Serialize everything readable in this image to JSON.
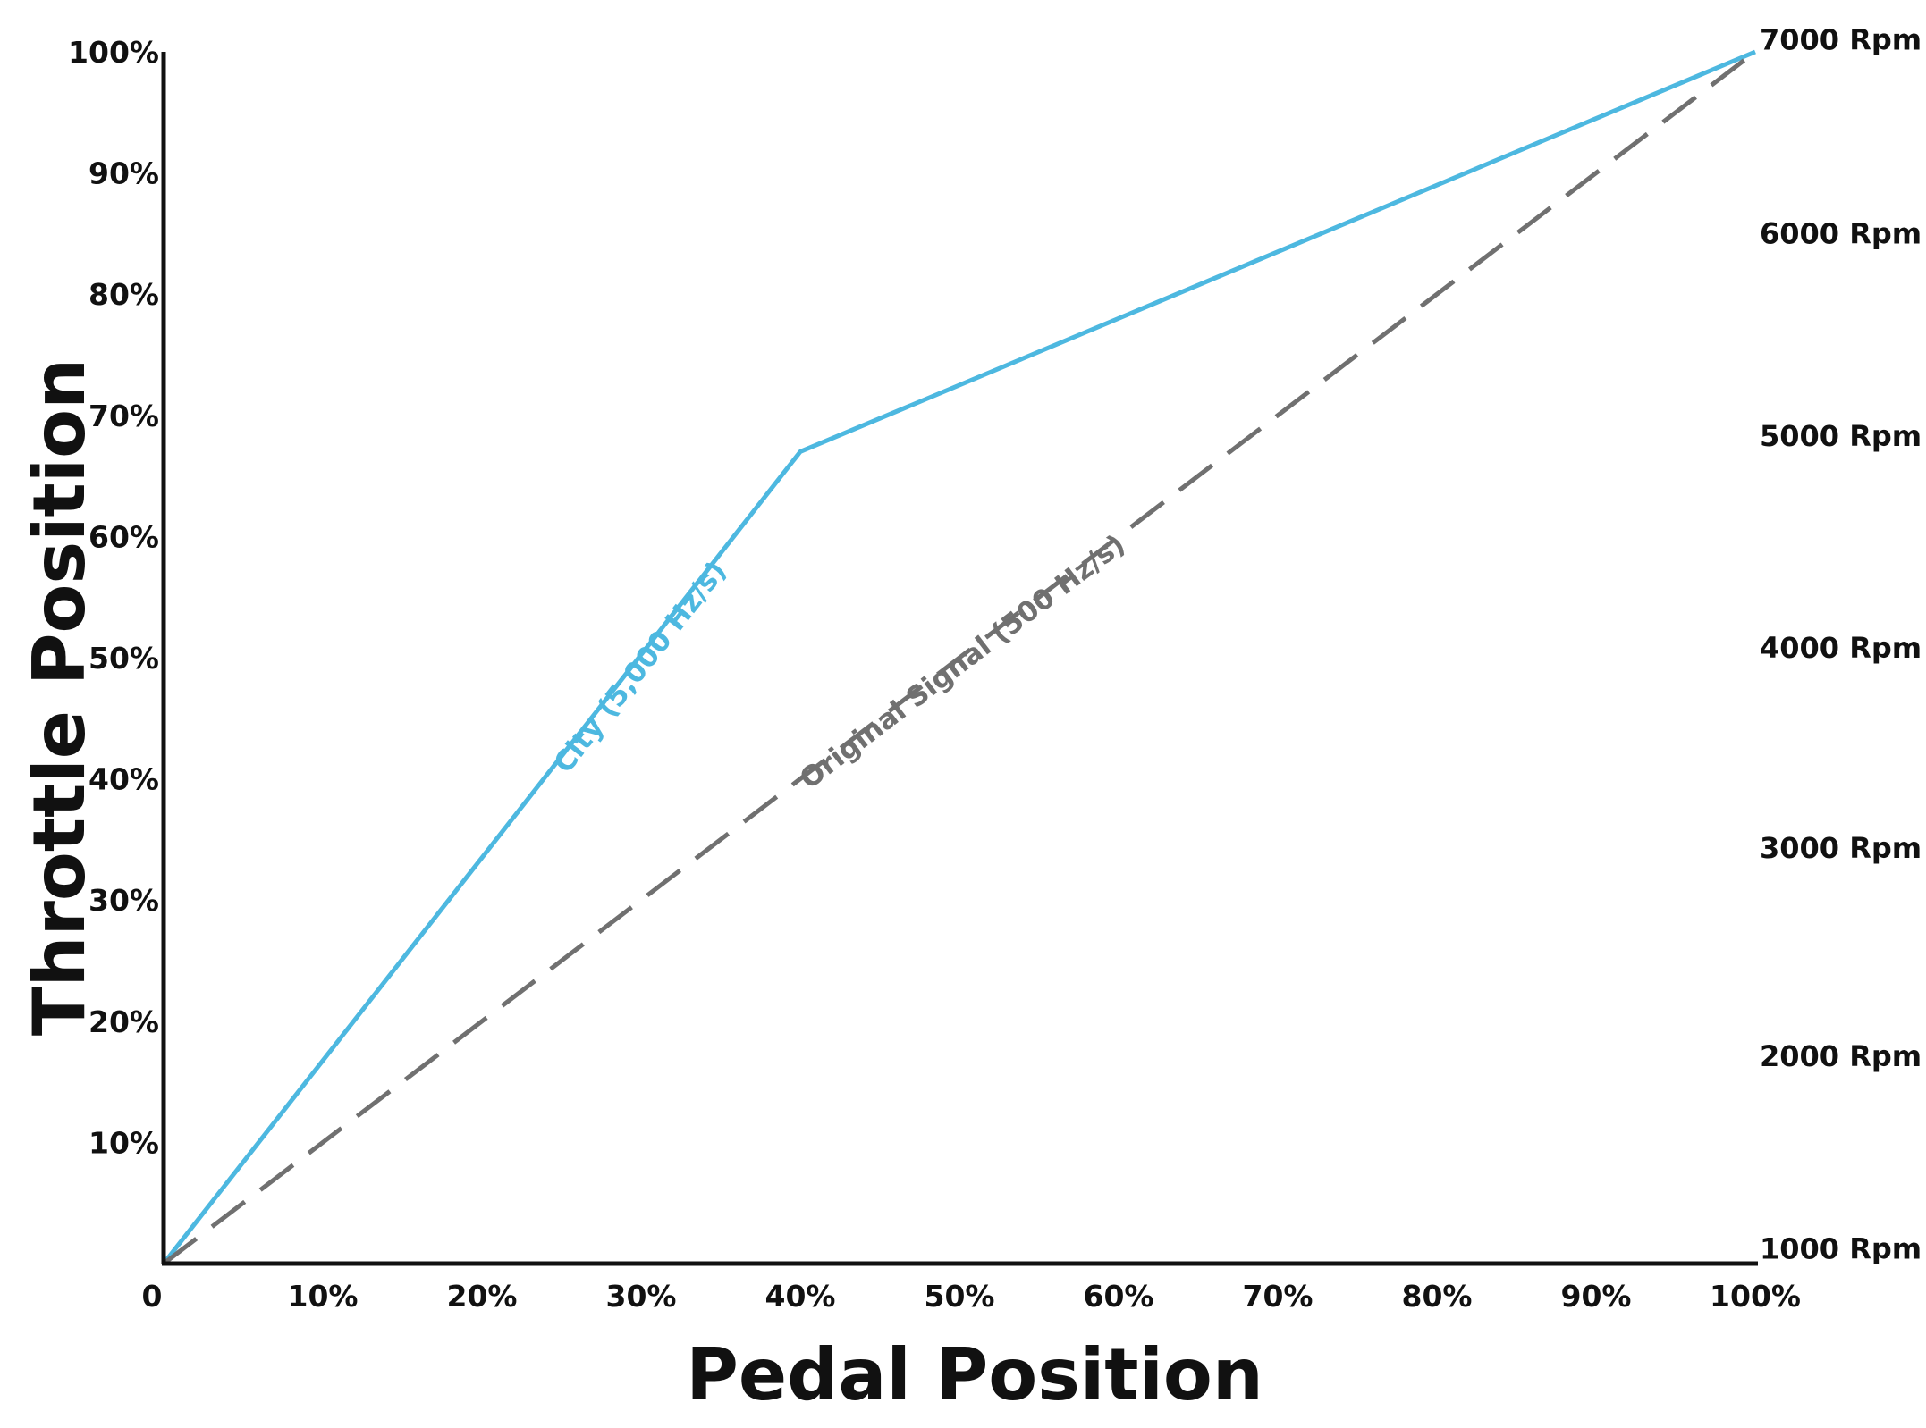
{
  "chart_data": {
    "type": "line",
    "title": "",
    "xlabel": "Pedal Position",
    "ylabel": "Throttle Position",
    "xlim": [
      0,
      100
    ],
    "ylim": [
      0,
      100
    ],
    "x_ticks": [
      "0",
      "10%",
      "20%",
      "30%",
      "40%",
      "50%",
      "60%",
      "70%",
      "80%",
      "90%",
      "100%"
    ],
    "y_ticks": [
      "10%",
      "20%",
      "30%",
      "40%",
      "50%",
      "60%",
      "70%",
      "80%",
      "90%",
      "100%"
    ],
    "y2_ticks": [
      {
        "label": "7000 Rpm",
        "value": 101
      },
      {
        "label": "6000 Rpm",
        "value": 85
      },
      {
        "label": "5000 Rpm",
        "value": 68.3
      },
      {
        "label": "4000 Rpm",
        "value": 50.8
      },
      {
        "label": "3000 Rpm",
        "value": 34.3
      },
      {
        "label": "2000 Rpm",
        "value": 17.1
      },
      {
        "label": "1000 Rpm",
        "value": 1.2
      }
    ],
    "grid": false,
    "series": [
      {
        "name": "City (5,000 Hz/s)",
        "color": "#4DB8E0",
        "style": "solid",
        "x": [
          0,
          40,
          100
        ],
        "y": [
          0,
          67,
          100
        ]
      },
      {
        "name": "Original Signal (500 Hz/s)",
        "color": "#707070",
        "style": "dashed",
        "x": [
          0,
          100
        ],
        "y": [
          0,
          100
        ]
      }
    ]
  }
}
